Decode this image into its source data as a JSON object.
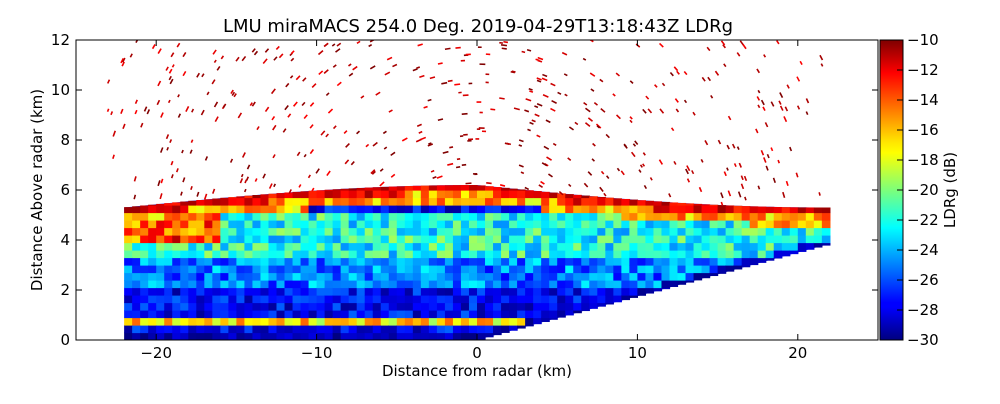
{
  "chart_data": {
    "type": "heatmap",
    "title": "LMU miraMACS 254.0 Deg. 2019-04-29T13:18:43Z  LDRg",
    "xlabel": "Distance from radar (km)",
    "ylabel": "Distance Above radar  (km)",
    "xlim": [
      -25,
      25
    ],
    "ylim": [
      0,
      12
    ],
    "x_ticks": [
      -20,
      -10,
      0,
      10,
      20
    ],
    "x_tick_labels": [
      "−20",
      "−10",
      "0",
      "10",
      "20"
    ],
    "y_ticks": [
      0,
      2,
      4,
      6,
      8,
      10,
      12
    ],
    "y_tick_labels": [
      "0",
      "2",
      "4",
      "6",
      "8",
      "10",
      "12"
    ],
    "colorbar": {
      "label": "LDRg (dB)",
      "range": [
        -30,
        -10
      ],
      "ticks": [
        -30,
        -28,
        -26,
        -24,
        -22,
        -20,
        -18,
        -16,
        -14,
        -12,
        -10
      ],
      "tick_labels": [
        "−30",
        "−28",
        "−26",
        "−24",
        "−22",
        "−20",
        "−18",
        "−16",
        "−14",
        "−12",
        "−10"
      ],
      "colormap": "jet"
    },
    "scan": {
      "left_edge_x": -22,
      "right_edge_x": 21.7,
      "right_edge_top_y": 4.0,
      "right_edge_bottom_y": 3.8,
      "cloud_top_center_y": 6.2,
      "cloud_top_left_y": 5.3,
      "cloud_top_right_y": 5.3,
      "noise_top_y": 12
    },
    "regions": [
      {
        "name": "cloud top band",
        "ldr_range": [
          -16,
          -10
        ]
      },
      {
        "name": "upper cloud layer",
        "ldr_range": [
          -26,
          -20
        ]
      },
      {
        "name": "cloud interior",
        "ldr_range": [
          -30,
          -24
        ]
      },
      {
        "name": "low liquid layer near 0.7 km",
        "ldr_range": [
          -20,
          -14
        ]
      },
      {
        "name": "noise above cloud",
        "ldr_range": [
          -12,
          -10
        ]
      }
    ]
  }
}
